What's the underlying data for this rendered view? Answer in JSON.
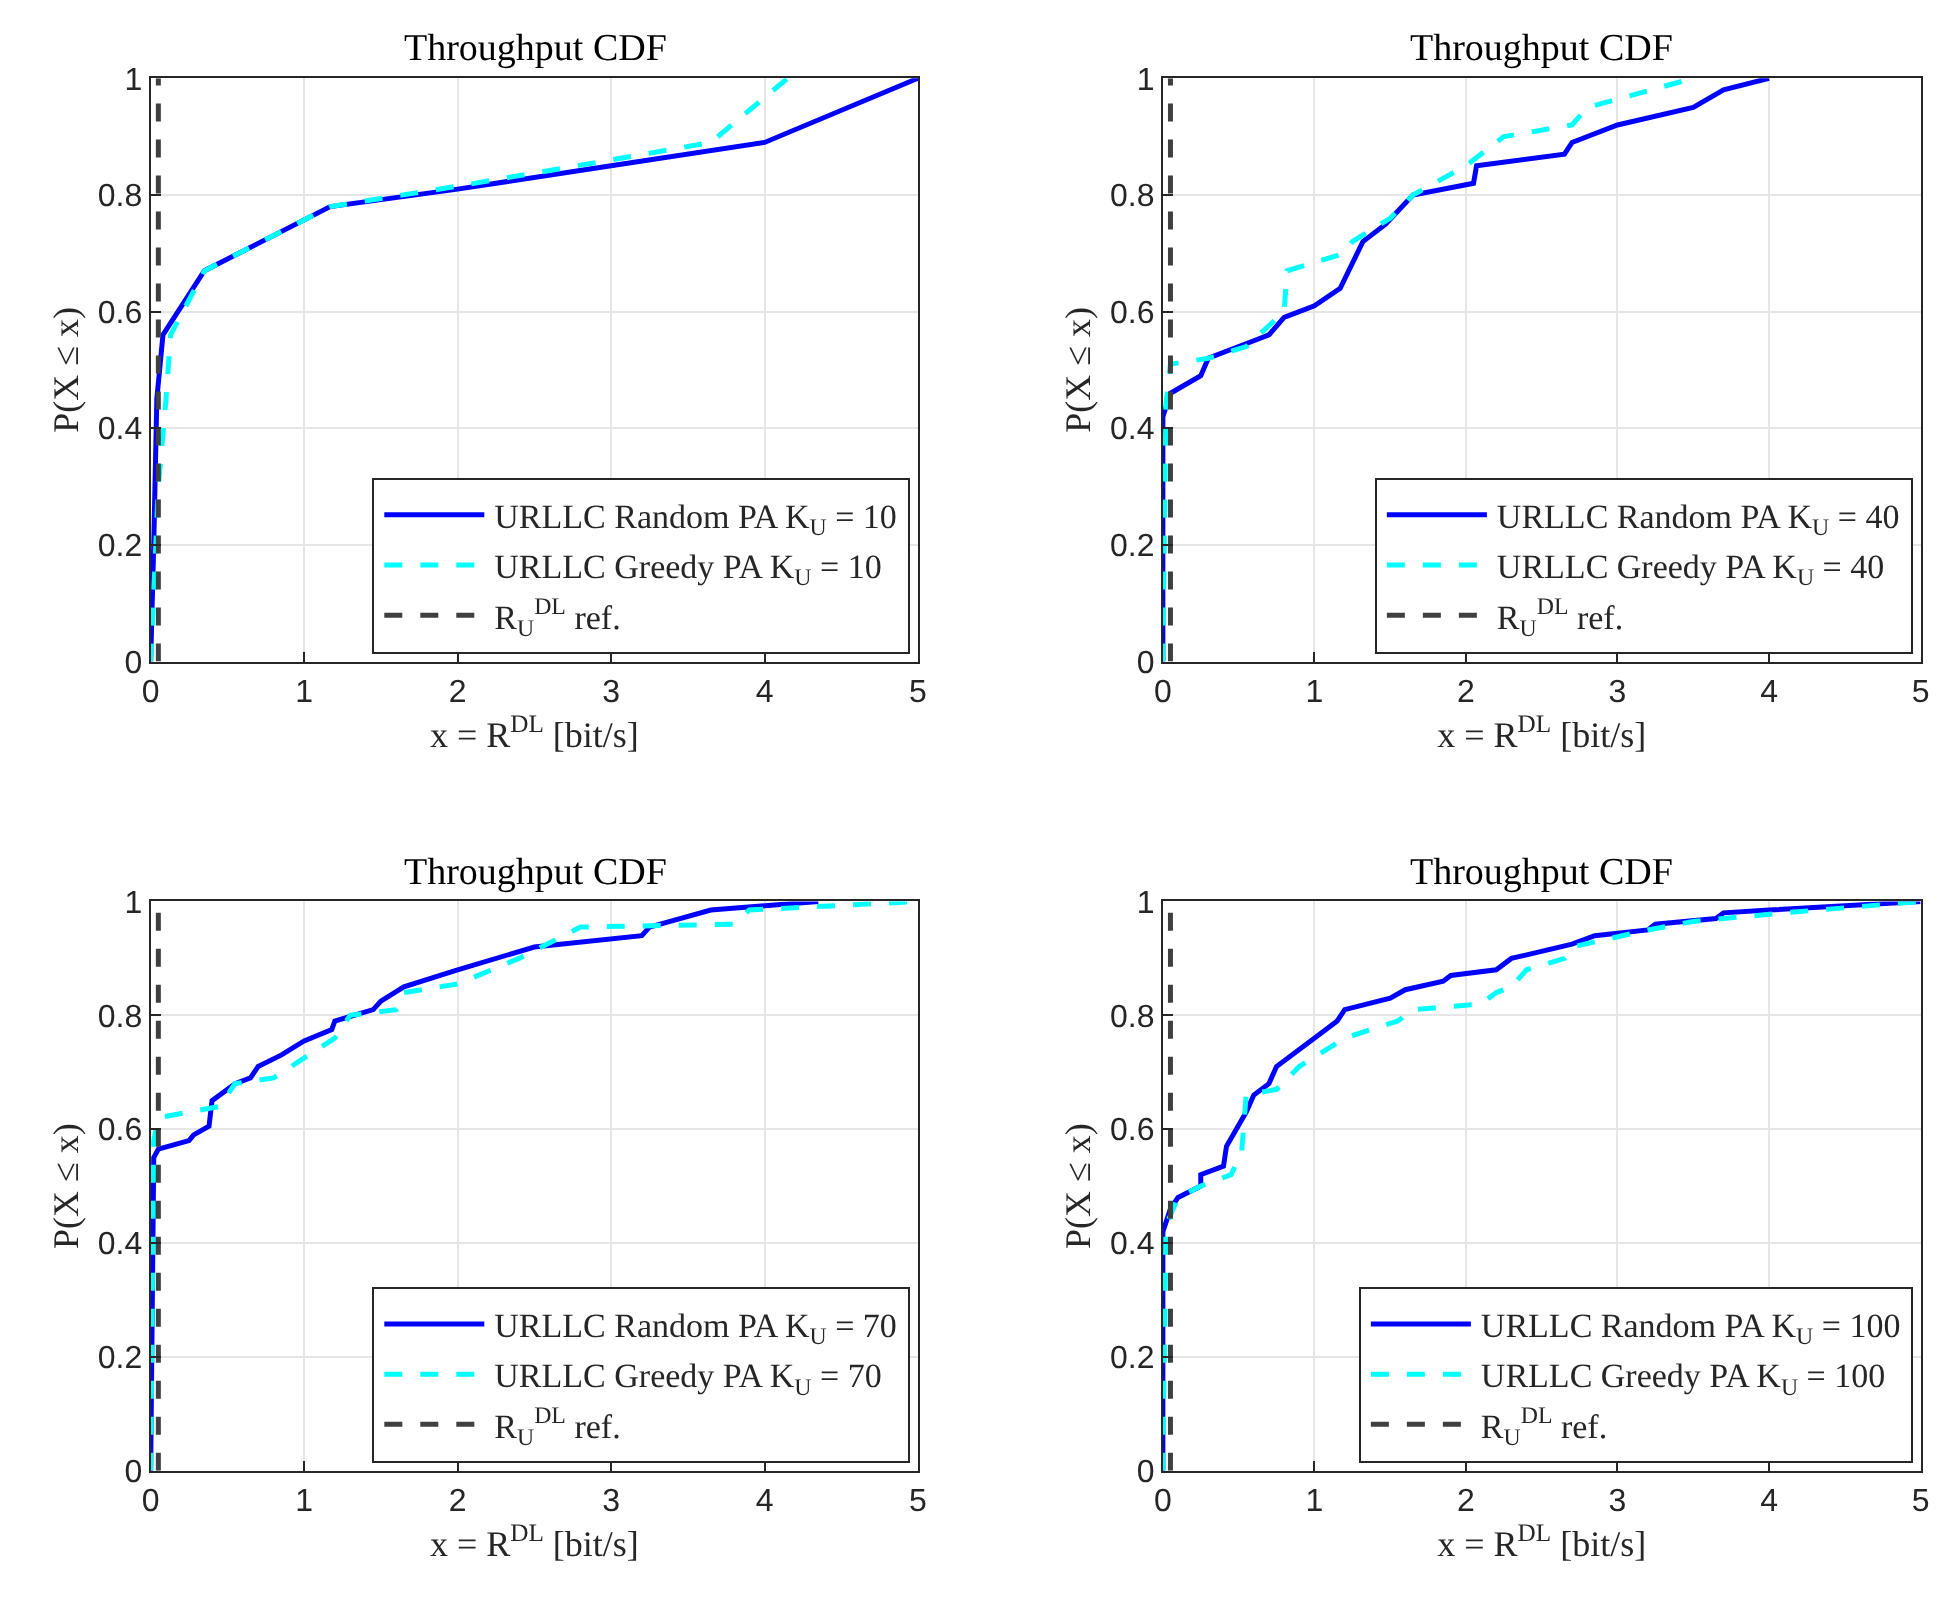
{
  "chart_data": [
    {
      "type": "line",
      "title": "Throughput CDF",
      "xlabel": "x = R$^{DL}$ [bit/s]",
      "ylabel": "P(X ≤ x)",
      "xlim": [
        0,
        5
      ],
      "xticks": [
        0,
        1,
        2,
        3,
        4,
        5
      ],
      "ylim": [
        0,
        1
      ],
      "yticks": [
        0,
        0.2,
        0.4,
        0.6,
        0.8,
        1
      ],
      "grid": true,
      "legend": "bottom right",
      "series": [
        {
          "name": "URLLC Random PA K$_{U}$ = 10",
          "color": "#0000ff",
          "line_style": "solid",
          "x": [
            0,
            0.02,
            0.04,
            0.08,
            0.35,
            1.17,
            2,
            3,
            4,
            5
          ],
          "values": [
            0,
            0.2,
            0.45,
            0.56,
            0.67,
            0.78,
            0.81,
            0.85,
            0.89,
            1
          ]
        },
        {
          "name": "URLLC Greedy PA K$_{U}$ = 10",
          "color": "#00ffff",
          "line_style": "dashed",
          "x": [
            0,
            0.05,
            0.1,
            0.13,
            0.35,
            1.17,
            2,
            3,
            3.65,
            4.15
          ],
          "values": [
            0,
            0.3,
            0.45,
            0.56,
            0.67,
            0.78,
            0.815,
            0.86,
            0.89,
            1
          ]
        },
        {
          "name": "R$_{U}$$^{DL}$ ref.",
          "color": "#404040",
          "line_style": "dashed",
          "x": [
            0.05,
            0.05
          ],
          "values": [
            0,
            1
          ]
        }
      ]
    },
    {
      "type": "line",
      "title": "Throughput CDF",
      "xlabel": "x = R$^{DL}$ [bit/s]",
      "ylabel": "P(X ≤ x)",
      "xlim": [
        0,
        5
      ],
      "xticks": [
        0,
        1,
        2,
        3,
        4,
        5
      ],
      "ylim": [
        0,
        1
      ],
      "yticks": [
        0,
        0.2,
        0.4,
        0.6,
        0.8,
        1
      ],
      "grid": true,
      "legend": "bottom right",
      "series": [
        {
          "name": "URLLC Random PA K$_{U}$ = 40",
          "color": "#0000ff",
          "line_style": "solid",
          "x": [
            0,
            0,
            0.05,
            0.25,
            0.3,
            0.6,
            0.7,
            0.8,
            1.0,
            1.17,
            1.32,
            1.47,
            1.65,
            2.05,
            2.07,
            2.65,
            2.7,
            3,
            3.5,
            3.7,
            4
          ],
          "values": [
            0,
            0.42,
            0.46,
            0.49,
            0.52,
            0.55,
            0.56,
            0.59,
            0.61,
            0.64,
            0.72,
            0.75,
            0.8,
            0.82,
            0.85,
            0.87,
            0.89,
            0.92,
            0.95,
            0.98,
            1
          ]
        },
        {
          "name": "URLLC Greedy PA K$_{U}$ = 40",
          "color": "#00ffff",
          "line_style": "dashed",
          "x": [
            0,
            0.02,
            0.05,
            0.3,
            0.55,
            0.8,
            0.82,
            1.2,
            1.25,
            1.5,
            1.65,
            2,
            2.25,
            2.7,
            2.8,
            3.5
          ],
          "values": [
            0,
            0.44,
            0.51,
            0.52,
            0.54,
            0.6,
            0.67,
            0.7,
            0.72,
            0.76,
            0.8,
            0.85,
            0.9,
            0.92,
            0.95,
            1
          ]
        },
        {
          "name": "R$_{U}$$^{DL}$ ref.",
          "color": "#404040",
          "line_style": "dashed",
          "x": [
            0.05,
            0.05
          ],
          "values": [
            0,
            1
          ]
        }
      ]
    },
    {
      "type": "line",
      "title": "Throughput CDF",
      "xlabel": "x = R$^{DL}$ [bit/s]",
      "ylabel": "P(X ≤ x)",
      "xlim": [
        0,
        5
      ],
      "xticks": [
        0,
        1,
        2,
        3,
        4,
        5
      ],
      "ylim": [
        0,
        1
      ],
      "yticks": [
        0,
        0.2,
        0.4,
        0.6,
        0.8,
        1
      ],
      "grid": true,
      "legend": "bottom right",
      "series": [
        {
          "name": "URLLC Random PA K$_{U}$ = 70",
          "color": "#0000ff",
          "line_style": "solid",
          "x": [
            0,
            0.02,
            0.05,
            0.25,
            0.28,
            0.38,
            0.4,
            0.55,
            0.65,
            0.7,
            0.85,
            1,
            1.18,
            1.2,
            1.45,
            1.5,
            1.65,
            2,
            2.5,
            3.2,
            3.25,
            3.65,
            4.35
          ],
          "values": [
            0,
            0.55,
            0.565,
            0.58,
            0.59,
            0.605,
            0.65,
            0.68,
            0.69,
            0.71,
            0.73,
            0.755,
            0.775,
            0.79,
            0.81,
            0.825,
            0.85,
            0.88,
            0.92,
            0.94,
            0.955,
            0.985,
            1
          ]
        },
        {
          "name": "URLLC Greedy PA K$_{U}$ = 70",
          "color": "#00ffff",
          "line_style": "dashed",
          "x": [
            0,
            0.02,
            0.05,
            0.45,
            0.55,
            0.8,
            1.2,
            1.3,
            1.6,
            1.65,
            2,
            2.4,
            2.8,
            3.8,
            3.9,
            5
          ],
          "values": [
            0,
            0.58,
            0.62,
            0.64,
            0.68,
            0.69,
            0.76,
            0.8,
            0.81,
            0.84,
            0.855,
            0.9,
            0.955,
            0.96,
            0.985,
            1
          ]
        },
        {
          "name": "R$_{U}$$^{DL}$ ref.",
          "color": "#404040",
          "line_style": "dashed",
          "x": [
            0.05,
            0.05
          ],
          "values": [
            0,
            1
          ]
        }
      ]
    },
    {
      "type": "line",
      "title": "Throughput CDF",
      "xlabel": "x = R$^{DL}$ [bit/s]",
      "ylabel": "P(X ≤ x)",
      "xlim": [
        0,
        5
      ],
      "xticks": [
        0,
        1,
        2,
        3,
        4,
        5
      ],
      "ylim": [
        0,
        1
      ],
      "yticks": [
        0,
        0.2,
        0.4,
        0.6,
        0.8,
        1
      ],
      "grid": true,
      "legend": "bottom right",
      "series": [
        {
          "name": "URLLC Random PA K$_{U}$ = 100",
          "color": "#0000ff",
          "line_style": "solid",
          "x": [
            0,
            0,
            0.05,
            0.1,
            0.25,
            0.25,
            0.4,
            0.42,
            0.55,
            0.6,
            0.7,
            0.75,
            0.9,
            1.05,
            1.15,
            1.2,
            1.5,
            1.6,
            1.85,
            1.9,
            2.2,
            2.3,
            2.7,
            2.85,
            3.2,
            3.25,
            3.65,
            3.7,
            4,
            5
          ],
          "values": [
            0,
            0.42,
            0.46,
            0.48,
            0.5,
            0.52,
            0.535,
            0.57,
            0.63,
            0.66,
            0.68,
            0.71,
            0.74,
            0.77,
            0.79,
            0.81,
            0.83,
            0.845,
            0.86,
            0.87,
            0.88,
            0.9,
            0.925,
            0.94,
            0.95,
            0.96,
            0.97,
            0.98,
            0.985,
            1
          ]
        },
        {
          "name": "URLLC Greedy PA K$_{U}$ = 100",
          "color": "#00ffff",
          "line_style": "dashed",
          "x": [
            0,
            0.02,
            0.1,
            0.25,
            0.45,
            0.52,
            0.55,
            0.75,
            0.9,
            1.2,
            1.55,
            1.65,
            2.1,
            2.2,
            2.3,
            2.4,
            2.65,
            2.7,
            3.2,
            3.5,
            4.1,
            5
          ],
          "values": [
            0,
            0.43,
            0.48,
            0.5,
            0.52,
            0.56,
            0.66,
            0.67,
            0.71,
            0.76,
            0.79,
            0.81,
            0.82,
            0.84,
            0.85,
            0.88,
            0.9,
            0.92,
            0.95,
            0.965,
            0.98,
            1
          ]
        },
        {
          "name": "R$_{U}$$^{DL}$ ref.",
          "color": "#404040",
          "line_style": "dashed",
          "x": [
            0.05,
            0.05
          ],
          "values": [
            0,
            1
          ]
        }
      ]
    }
  ]
}
